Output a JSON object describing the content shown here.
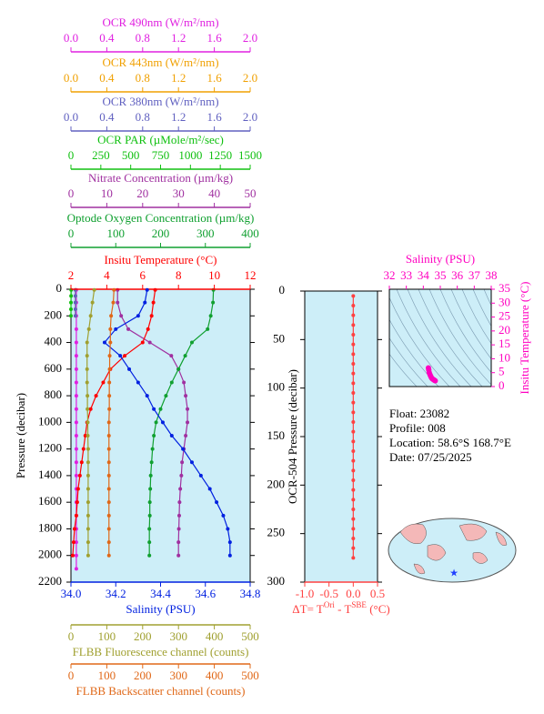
{
  "chart_data": [
    {
      "type": "profile",
      "ylabel": "Pressure (decibar)",
      "ylim": [
        0,
        2200
      ],
      "y_inverted": true,
      "yticks": [
        0,
        200,
        400,
        600,
        800,
        1000,
        1200,
        1400,
        1600,
        1800,
        2000,
        2200
      ],
      "x_axes": [
        {
          "label": "OCR 490nm (W/m²/nm)",
          "color": "#e020e0",
          "side": "top",
          "xlim": [
            0,
            2
          ],
          "xticks": [
            {
              "value": 0,
              "label": "0.0"
            },
            0.4,
            0.8,
            1.2,
            1.6,
            {
              "value": 2,
              "label": "2.0"
            }
          ],
          "pressure": [
            5,
            100,
            200,
            300,
            400,
            500,
            600,
            700,
            800,
            900,
            1000,
            1100,
            1200,
            1300,
            1400,
            1500,
            1600,
            1700,
            1800,
            1900,
            2000,
            2100
          ],
          "values": [
            0.06,
            0.06,
            0.06,
            0.06,
            0.06,
            0.06,
            0.06,
            0.06,
            0.06,
            0.06,
            0.06,
            0.06,
            0.06,
            0.06,
            0.06,
            0.06,
            0.06,
            0.06,
            0.06,
            0.06,
            0.06,
            0.06
          ]
        },
        {
          "label": "OCR 443nm (W/m²/nm)",
          "color": "#f0a000",
          "side": "top",
          "xlim": [
            0,
            2
          ],
          "xticks": [
            {
              "value": 0,
              "label": "0.0"
            },
            0.4,
            0.8,
            1.2,
            1.6,
            {
              "value": 2,
              "label": "2.0"
            }
          ],
          "pressure": [
            5,
            50,
            100,
            150,
            200
          ],
          "values": [
            0.05,
            0.05,
            0.05,
            0.05,
            0.05
          ]
        },
        {
          "label": "OCR 380nm (W/m²/nm)",
          "color": "#6060c0",
          "side": "top",
          "xlim": [
            0,
            2
          ],
          "xticks": [
            {
              "value": 0,
              "label": "0.0"
            },
            0.4,
            0.8,
            1.2,
            1.6,
            {
              "value": 2,
              "label": "2.0"
            }
          ],
          "pressure": [
            5,
            50,
            100,
            150,
            200
          ],
          "values": [
            0.05,
            0.05,
            0.05,
            0.05,
            0.05
          ]
        },
        {
          "label": "OCR PAR (µMole/m²/sec)",
          "color": "#10c010",
          "side": "top",
          "xlim": [
            0,
            1500
          ],
          "xticks": [
            0,
            250,
            500,
            750,
            1000,
            1250,
            1500
          ],
          "pressure": [
            5,
            50,
            100,
            150,
            200
          ],
          "values": [
            2,
            1,
            0,
            0,
            0
          ]
        },
        {
          "label": "Nitrate Concentration (µm/kg)",
          "color": "#a030a0",
          "side": "top",
          "xlim": [
            0,
            50
          ],
          "xticks": [
            0,
            10,
            20,
            30,
            40,
            50
          ],
          "pressure": [
            5,
            100,
            200,
            300,
            400,
            500,
            600,
            700,
            800,
            900,
            1000,
            1100,
            1200,
            1300,
            1400,
            1500,
            1600,
            1700,
            1800,
            1900,
            2000
          ],
          "values": [
            13,
            13,
            14,
            16,
            22,
            28,
            30,
            31.5,
            32,
            32.5,
            32.5,
            32,
            31.5,
            31,
            30.8,
            30.5,
            30.3,
            30.2,
            30.1,
            30,
            30
          ]
        },
        {
          "label": "Optode Oxygen Concentration (µm/kg)",
          "color": "#10a030",
          "side": "top",
          "xlim": [
            0,
            400
          ],
          "xticks": [
            0,
            100,
            200,
            300,
            400
          ],
          "pressure": [
            5,
            100,
            200,
            300,
            400,
            500,
            600,
            700,
            800,
            900,
            1000,
            1100,
            1200,
            1300,
            1400,
            1500,
            1600,
            1700,
            1800,
            1900,
            2000
          ],
          "values": [
            318,
            317,
            312,
            305,
            270,
            255,
            240,
            225,
            212,
            200,
            190,
            185,
            182,
            180,
            178,
            177,
            176,
            176,
            175,
            175,
            175
          ]
        },
        {
          "label": "Insitu Temperature (°C)",
          "color": "#ff0000",
          "side": "top",
          "xlim": [
            2,
            12
          ],
          "xticks": [
            2,
            4,
            6,
            8,
            10,
            12
          ],
          "pressure": [
            5,
            100,
            200,
            300,
            400,
            500,
            600,
            700,
            800,
            900,
            1000,
            1100,
            1200,
            1300,
            1400,
            1500,
            1600,
            1700,
            1800,
            1900,
            2000
          ],
          "values": [
            6.7,
            6.6,
            6.5,
            6.3,
            6.0,
            5.0,
            4.2,
            3.8,
            3.4,
            3.1,
            2.9,
            2.8,
            2.7,
            2.6,
            2.5,
            2.4,
            2.35,
            2.3,
            2.2,
            2.15,
            2.1
          ]
        },
        {
          "label": "Salinity (PSU)",
          "color": "#0020e0",
          "side": "bottom",
          "xlim": [
            34.0,
            34.8
          ],
          "xticks": [
            {
              "value": 34.0,
              "label": "34.0"
            },
            34.2,
            34.4,
            34.6,
            34.8
          ],
          "pressure": [
            5,
            100,
            200,
            300,
            400,
            500,
            600,
            700,
            800,
            900,
            1000,
            1100,
            1200,
            1300,
            1400,
            1500,
            1600,
            1700,
            1800,
            1900,
            2000
          ],
          "values": [
            34.34,
            34.33,
            34.3,
            34.2,
            34.15,
            34.22,
            34.26,
            34.3,
            34.34,
            34.37,
            34.41,
            34.45,
            34.5,
            34.54,
            34.58,
            34.62,
            34.65,
            34.68,
            34.7,
            34.71,
            34.71
          ]
        },
        {
          "label": "FLBB Fluorescence channel (counts)",
          "color": "#a0a030",
          "side": "bottom",
          "xlim": [
            0,
            500
          ],
          "xticks": [
            0,
            100,
            200,
            300,
            400,
            500
          ],
          "pressure": [
            5,
            100,
            200,
            300,
            400,
            500,
            600,
            700,
            800,
            900,
            1000,
            1100,
            1200,
            1300,
            1400,
            1500,
            1600,
            1700,
            1800,
            1900,
            2000
          ],
          "values": [
            65,
            60,
            55,
            50,
            45,
            45,
            45,
            45,
            46,
            46,
            47,
            47,
            48,
            48,
            48,
            48,
            48,
            48,
            48,
            48,
            48
          ]
        },
        {
          "label": "FLBB Backscatter channel (counts)",
          "color": "#e06818",
          "side": "bottom",
          "xlim": [
            0,
            500
          ],
          "xticks": [
            0,
            100,
            200,
            300,
            400,
            500
          ],
          "pressure": [
            5,
            100,
            200,
            300,
            400,
            500,
            600,
            700,
            800,
            900,
            1000,
            1100,
            1200,
            1300,
            1400,
            1500,
            1600,
            1700,
            1800,
            1900,
            2000
          ],
          "values": [
            120,
            118,
            112,
            110,
            110,
            108,
            108,
            107,
            107,
            107,
            106,
            106,
            106,
            106,
            106,
            106,
            106,
            106,
            106,
            106,
            106
          ]
        }
      ]
    },
    {
      "type": "profile",
      "ylabel": "OCR-504 Pressure (decibar)",
      "ylim": [
        0,
        300
      ],
      "y_inverted": true,
      "yticks": [
        0,
        50,
        100,
        150,
        200,
        250,
        300
      ],
      "x_axes": [
        {
          "label_parts": [
            "ΔT= T",
            "Ori",
            " - T",
            "SBE",
            " (°C)"
          ],
          "color": "#ff4040",
          "side": "bottom",
          "xlim": [
            -1.0,
            0.5
          ],
          "xticks": [
            {
              "value": -1.0,
              "label": "-1.0"
            },
            -0.5,
            {
              "value": 0,
              "label": "0.0"
            },
            0.5
          ],
          "pressure": [
            5,
            15,
            25,
            35,
            45,
            55,
            65,
            75,
            85,
            95,
            105,
            115,
            125,
            135,
            145,
            155,
            165,
            175,
            185,
            195,
            205,
            215,
            225,
            235,
            245,
            255,
            265,
            275
          ],
          "values": [
            0,
            0,
            0,
            0,
            0,
            0,
            0,
            0,
            0,
            0,
            0,
            0,
            0,
            0,
            0,
            0,
            0,
            0,
            0,
            0,
            0,
            0,
            0,
            0,
            0,
            0,
            0,
            0
          ]
        }
      ]
    },
    {
      "type": "scatter",
      "xlabel": "Salinity (PSU)",
      "ylabel": "Insitu Temperature (°C)",
      "color": "#ff00c0",
      "xlim": [
        32,
        38
      ],
      "xticks": [
        32,
        33,
        34,
        35,
        36,
        37,
        38
      ],
      "ylim": [
        0,
        35
      ],
      "yticks": [
        0,
        5,
        10,
        15,
        20,
        25,
        30,
        35
      ],
      "x": [
        34.3,
        34.32,
        34.35,
        34.4,
        34.45,
        34.5,
        34.55,
        34.6,
        34.65,
        34.7
      ],
      "values": [
        6.7,
        6.0,
        5.0,
        4.2,
        3.5,
        3.0,
        2.7,
        2.5,
        2.3,
        2.1
      ]
    }
  ],
  "info": [
    "Float:  23082",
    "Profile:  008",
    "Location:  58.6°S  168.7°E",
    "Date:  07/25/2025"
  ]
}
